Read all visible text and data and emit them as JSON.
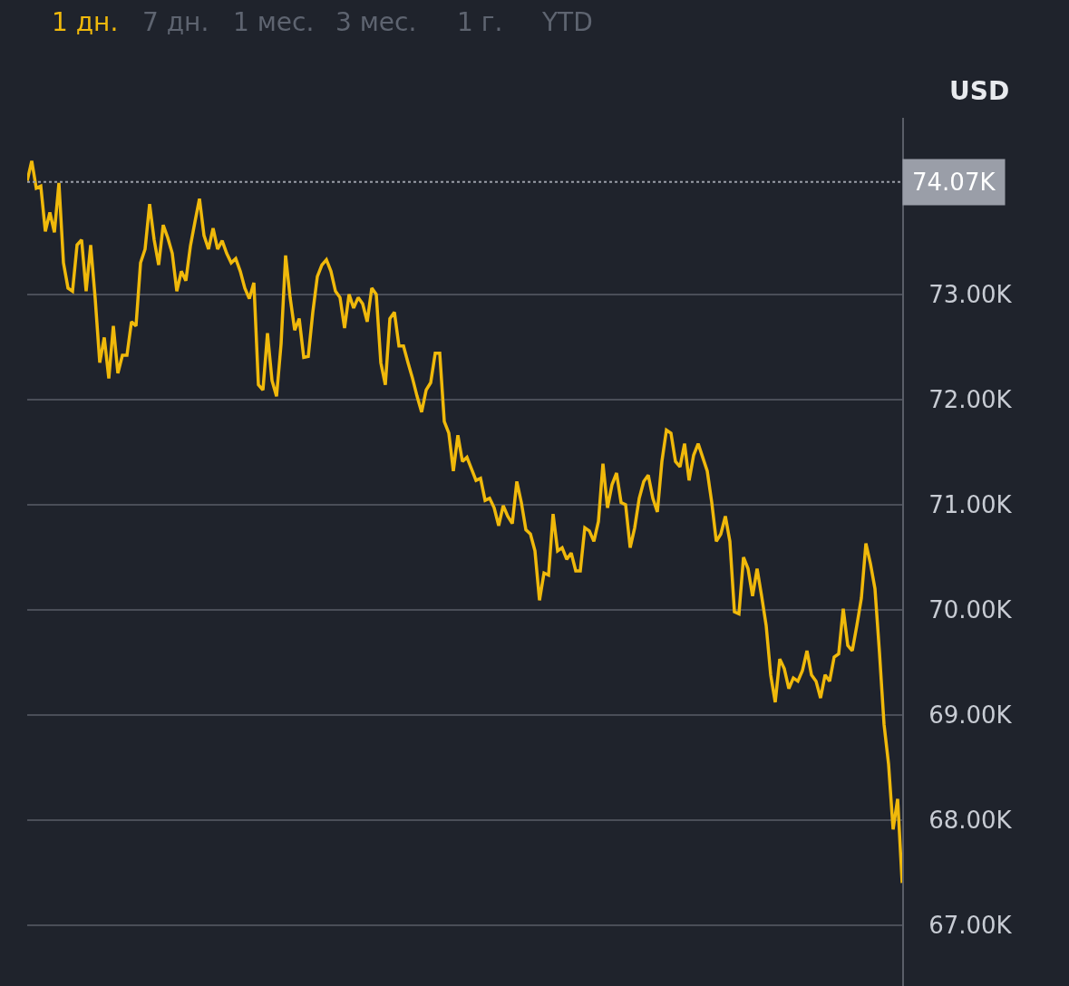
{
  "chart_data": {
    "type": "line",
    "annotations": [
      "1 дн.",
      "7 дн.",
      "1 мес.",
      "3 мес.",
      "1 г.",
      "YTD"
    ],
    "ylabel": "USD",
    "categories": [
      null,
      null,
      null,
      null,
      null,
      null,
      null,
      null,
      null,
      null,
      null,
      null,
      null,
      null,
      null,
      null,
      null,
      null,
      null,
      null,
      null,
      null,
      null,
      null,
      null,
      null,
      null,
      null,
      null,
      null,
      null,
      null,
      null,
      null,
      null,
      null,
      null,
      null,
      null,
      null,
      null,
      null,
      null,
      null,
      null,
      null,
      null,
      null,
      null,
      null,
      null,
      null,
      null,
      null,
      null,
      null,
      null,
      null,
      null,
      null,
      null,
      null,
      null,
      null,
      null,
      null,
      null,
      null,
      null,
      null,
      null,
      null,
      null,
      null,
      null,
      null,
      null,
      null,
      null,
      null,
      null,
      null,
      null,
      null,
      null,
      null,
      null,
      null,
      null,
      null,
      null,
      null,
      null,
      null,
      null,
      null,
      null,
      null,
      null,
      null,
      null,
      null,
      null,
      null,
      null,
      null,
      null,
      null,
      null,
      null,
      null,
      null,
      null,
      null,
      null,
      null,
      null,
      null,
      null,
      null,
      null,
      null,
      null,
      null,
      null,
      null,
      null,
      null,
      null,
      null,
      null,
      null,
      null,
      null,
      null,
      null,
      null,
      null,
      null,
      null,
      null,
      null,
      null,
      null,
      null,
      null,
      null,
      null,
      null,
      null,
      null,
      null,
      null,
      null,
      null,
      null,
      null,
      null,
      null,
      null,
      null,
      null,
      null,
      null,
      null,
      null,
      null,
      null,
      null,
      null,
      null,
      null,
      null,
      null,
      null,
      null,
      null,
      null,
      null,
      null,
      null,
      null,
      null,
      null,
      null,
      null,
      null,
      null,
      null,
      null,
      null,
      null,
      null,
      null
    ],
    "series": [
      {
        "color": "#f0b90b",
        "values": [
          74.08,
          74.27,
          74.01,
          74.03,
          73.6,
          73.78,
          73.59,
          74.06,
          73.3,
          73.06,
          73.03,
          73.47,
          73.52,
          73.03,
          73.47,
          72.96,
          72.35,
          72.59,
          72.2,
          72.7,
          72.25,
          72.42,
          72.42,
          72.74,
          72.7,
          73.3,
          73.43,
          73.86,
          73.52,
          73.28,
          73.66,
          73.54,
          73.39,
          73.03,
          73.22,
          73.13,
          73.46,
          73.69,
          73.91,
          73.56,
          73.43,
          73.63,
          73.43,
          73.51,
          73.39,
          73.3,
          73.34,
          73.22,
          73.06,
          72.96,
          73.11,
          72.14,
          72.09,
          72.63,
          72.18,
          72.03,
          72.53,
          73.37,
          72.97,
          72.66,
          72.77,
          72.4,
          72.41,
          72.83,
          73.17,
          73.28,
          73.33,
          73.22,
          73.03,
          72.97,
          72.68,
          73.0,
          72.87,
          72.97,
          72.91,
          72.74,
          73.06,
          73.0,
          72.35,
          72.14,
          72.77,
          72.83,
          72.51,
          72.51,
          72.35,
          72.2,
          72.03,
          71.88,
          72.09,
          72.16,
          72.44,
          72.44,
          71.79,
          71.68,
          71.32,
          71.66,
          71.41,
          71.45,
          71.34,
          71.23,
          71.25,
          71.04,
          71.06,
          70.97,
          70.8,
          70.99,
          70.89,
          70.82,
          71.22,
          71.02,
          70.76,
          70.72,
          70.56,
          70.09,
          70.35,
          70.33,
          70.91,
          70.56,
          70.59,
          70.48,
          70.54,
          70.37,
          70.37,
          70.78,
          70.75,
          70.65,
          70.84,
          71.39,
          70.97,
          71.19,
          71.3,
          71.02,
          71.0,
          70.59,
          70.78,
          71.06,
          71.22,
          71.28,
          71.06,
          70.93,
          71.41,
          71.71,
          71.68,
          71.41,
          71.36,
          71.58,
          71.23,
          71.47,
          71.58,
          71.45,
          71.32,
          71.02,
          70.65,
          70.72,
          70.89,
          70.65,
          69.98,
          69.96,
          70.5,
          70.39,
          70.13,
          70.39,
          70.13,
          69.85,
          69.38,
          69.12,
          69.53,
          69.44,
          69.25,
          69.35,
          69.32,
          69.42,
          69.61,
          69.38,
          69.32,
          69.16,
          69.38,
          69.32,
          69.55,
          69.58,
          70.01,
          69.66,
          69.61,
          69.85,
          70.11,
          70.63,
          70.44,
          70.2,
          69.59,
          68.91,
          68.53,
          67.91,
          68.2,
          67.4
        ]
      }
    ],
    "ylim": [
      66.42,
      74.68
    ],
    "yticks": [
      {
        "value": 67,
        "label": "67.00K"
      },
      {
        "value": 68,
        "label": "68.00K"
      },
      {
        "value": 69,
        "label": "69.00K"
      },
      {
        "value": 70,
        "label": "70.00K"
      },
      {
        "value": 71,
        "label": "71.00K"
      },
      {
        "value": 72,
        "label": "72.00K"
      },
      {
        "value": 73,
        "label": "73.00K"
      }
    ],
    "ref_lines": [
      {
        "axis": "y",
        "value": 74.07,
        "label": "74.07K",
        "color": "#9a9ea8",
        "line_style": "dotted"
      }
    ],
    "grid": "y",
    "tick_labels": "y",
    "marker": "none",
    "line_style": "solid"
  }
}
